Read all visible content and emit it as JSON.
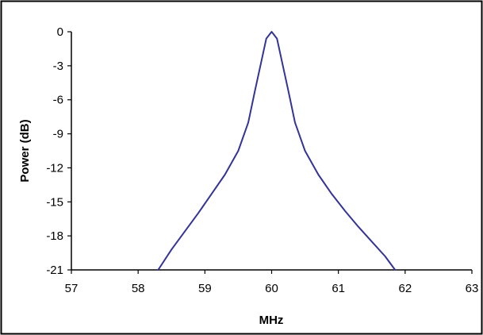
{
  "chart_data": {
    "type": "line",
    "title": "",
    "xlabel": "MHz",
    "ylabel": "Power (dB)",
    "xlim": [
      57,
      63
    ],
    "ylim": [
      -21,
      0
    ],
    "x_ticks": [
      57,
      58,
      59,
      60,
      61,
      62,
      63
    ],
    "y_ticks": [
      0,
      -3,
      -6,
      -9,
      -12,
      -15,
      -18,
      -21
    ],
    "x_tick_labels": [
      "57",
      "58",
      "59",
      "60",
      "61",
      "62",
      "63"
    ],
    "y_tick_labels": [
      "0",
      "-3",
      "-6",
      "-9",
      "-12",
      "-15",
      "-18",
      "-21"
    ],
    "grid": false,
    "legend": "none",
    "series": [
      {
        "color": "#333399",
        "points": [
          [
            58.3,
            -21.0
          ],
          [
            58.5,
            -19.2
          ],
          [
            58.7,
            -17.6
          ],
          [
            58.9,
            -16.0
          ],
          [
            59.1,
            -14.3
          ],
          [
            59.3,
            -12.6
          ],
          [
            59.5,
            -10.5
          ],
          [
            59.65,
            -8.0
          ],
          [
            59.75,
            -5.2
          ],
          [
            59.85,
            -2.5
          ],
          [
            59.92,
            -0.6
          ],
          [
            60.0,
            0.0
          ],
          [
            60.08,
            -0.6
          ],
          [
            60.15,
            -2.5
          ],
          [
            60.25,
            -5.2
          ],
          [
            60.35,
            -8.0
          ],
          [
            60.5,
            -10.5
          ],
          [
            60.7,
            -12.6
          ],
          [
            60.9,
            -14.3
          ],
          [
            61.1,
            -15.8
          ],
          [
            61.3,
            -17.2
          ],
          [
            61.5,
            -18.5
          ],
          [
            61.7,
            -19.8
          ],
          [
            61.85,
            -21.0
          ]
        ]
      }
    ]
  }
}
